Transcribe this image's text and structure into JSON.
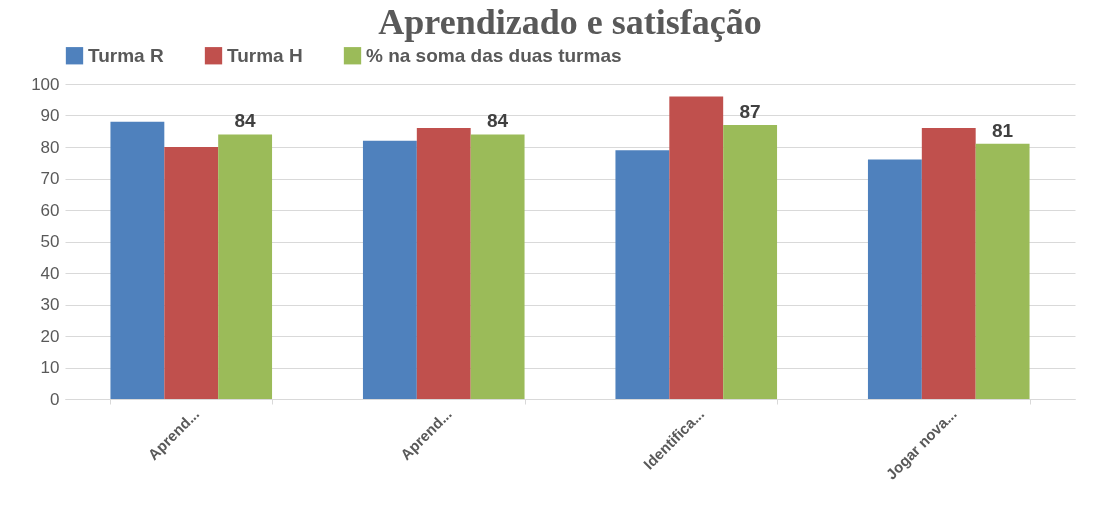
{
  "chart_data": {
    "type": "bar",
    "title": "Aprendizado e satisfação",
    "categories": [
      "Aprend...",
      "Aprend...",
      "Identifica...",
      "Jogar nova..."
    ],
    "series": [
      {
        "name": "Turma R",
        "color": "#4f81bd",
        "values": [
          88,
          82,
          79,
          76
        ]
      },
      {
        "name": "Turma H",
        "color": "#c0504d",
        "values": [
          80,
          86,
          96,
          86
        ]
      },
      {
        "name": "% na soma das duas turmas",
        "color": "#9bbb59",
        "values": [
          84,
          84,
          87,
          81
        ],
        "value_labels": [
          "84",
          "84",
          "87",
          "81"
        ]
      }
    ],
    "ylim": [
      0,
      100
    ],
    "yticks": [
      0,
      10,
      20,
      30,
      40,
      50,
      60,
      70,
      80,
      90,
      100
    ],
    "grid": "y",
    "legend": "top"
  }
}
